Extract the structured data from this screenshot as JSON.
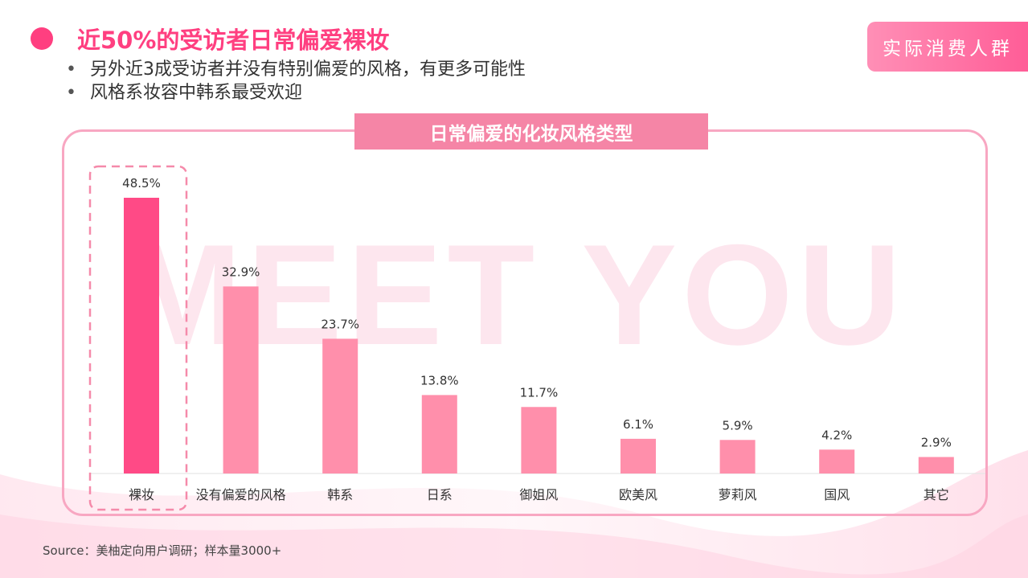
{
  "header": {
    "title": "近50%的受访者日常偏爱裸妆",
    "bullets": [
      "另外近3成受访者并没有特别偏爱的风格，有更多可能性",
      "风格系妆容中韩系最受欢迎"
    ],
    "tag": "实际消费人群"
  },
  "watermark": "MEET YOU",
  "source": "Source：美柚定向用户调研；样本量3000+",
  "colors": {
    "accent": "#ff3f80",
    "bar_highlight": "#ff4a86",
    "bar_normal": "#ff8fab",
    "panel_border": "#f8a7c2"
  },
  "chart_data": {
    "type": "bar",
    "title": "日常偏爱的化妆风格类型",
    "categories": [
      "裸妆",
      "没有偏爱的风格",
      "韩系",
      "日系",
      "御姐风",
      "欧美风",
      "萝莉风",
      "国风",
      "其它"
    ],
    "values": [
      48.5,
      32.9,
      23.7,
      13.8,
      11.7,
      6.1,
      5.9,
      4.2,
      2.9
    ],
    "value_labels": [
      "48.5%",
      "32.9%",
      "23.7%",
      "13.8%",
      "11.7%",
      "6.1%",
      "5.9%",
      "4.2%",
      "2.9%"
    ],
    "unit": "%",
    "highlight_index": 0,
    "ylim": [
      0,
      50
    ],
    "grid": false,
    "legend": "none"
  }
}
